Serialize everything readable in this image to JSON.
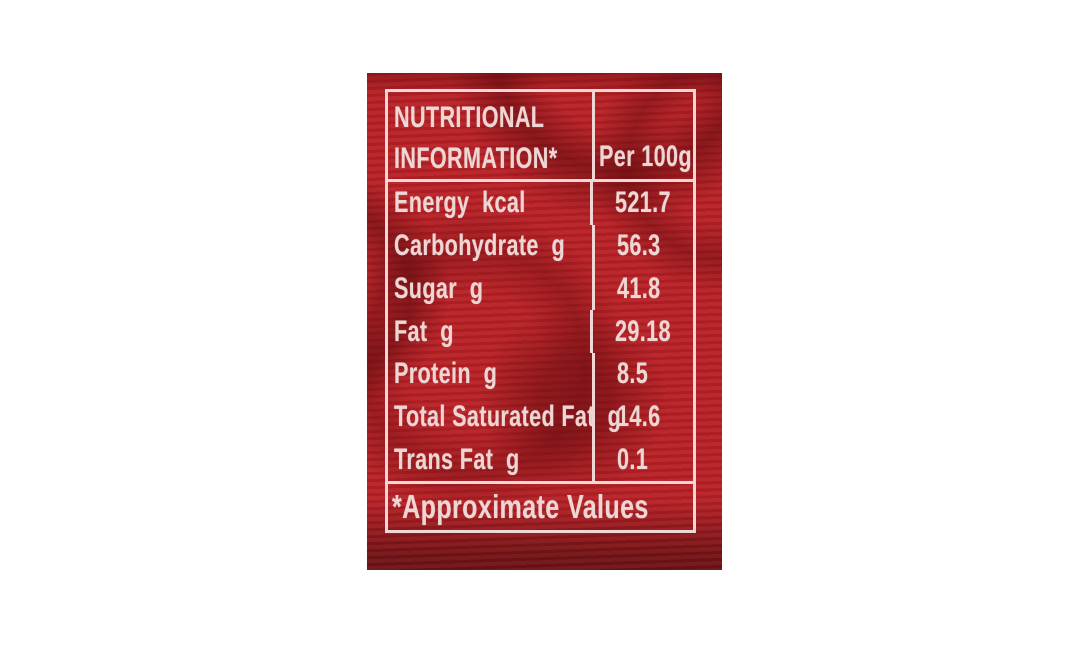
{
  "page": {
    "background": "#ffffff"
  },
  "label": {
    "colors": {
      "panel_red": "#b82025",
      "swirl_dark": "#6e0f13",
      "text_pink": "#eed6d4",
      "border_pink": "#efd7d6",
      "page_bg": "#ffffff"
    },
    "table": {
      "header": {
        "title_line1": "NUTRITIONAL",
        "title_line2": "INFORMATION*",
        "column_label": "Per 100g"
      },
      "rows": [
        {
          "label": "Energy  kcal",
          "value": "521.7"
        },
        {
          "label": "Carbohydrate  g",
          "value": "56.3"
        },
        {
          "label": "Sugar  g",
          "value": "41.8"
        },
        {
          "label": "Fat  g",
          "value": "29.18"
        },
        {
          "label": "Protein  g",
          "value": "8.5"
        },
        {
          "label": "Total Saturated Fat  g",
          "value": "14.6"
        },
        {
          "label": "Trans Fat  g",
          "value": "0.1"
        }
      ],
      "footer_note": "*Approximate Values"
    }
  }
}
